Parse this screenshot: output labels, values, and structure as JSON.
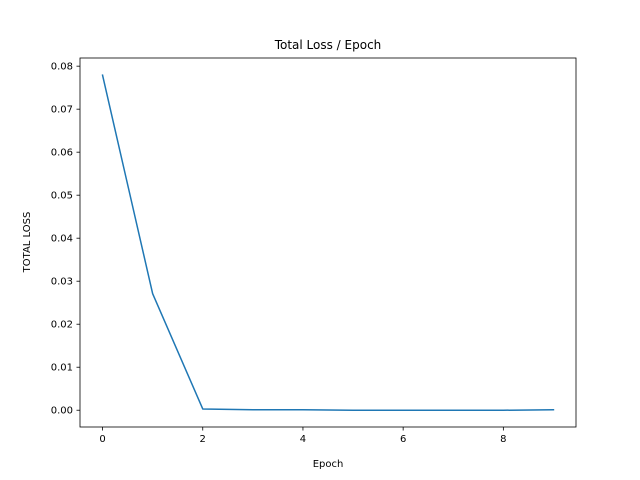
{
  "chart_data": {
    "type": "line",
    "title": "Total Loss / Epoch",
    "xlabel": "Epoch",
    "ylabel": "TOTAL LOSS",
    "xlim": [
      -0.45,
      9.45
    ],
    "ylim": [
      -0.0039,
      0.0819
    ],
    "xticks": [
      0,
      2,
      4,
      6,
      8
    ],
    "xtick_labels": [
      "0",
      "2",
      "4",
      "6",
      "8"
    ],
    "yticks": [
      0.0,
      0.01,
      0.02,
      0.03,
      0.04,
      0.05,
      0.06,
      0.07,
      0.08
    ],
    "ytick_labels": [
      "0.00",
      "0.01",
      "0.02",
      "0.03",
      "0.04",
      "0.05",
      "0.06",
      "0.07",
      "0.08"
    ],
    "grid": false,
    "series": [
      {
        "color": "#1f77b4",
        "x": [
          0,
          1,
          2,
          3,
          4,
          5,
          6,
          7,
          8,
          9
        ],
        "y": [
          0.0779,
          0.0271,
          0.0003,
          0.0001,
          0.0001,
          0.0,
          0.0,
          0.0,
          0.0,
          0.0001
        ]
      }
    ]
  }
}
